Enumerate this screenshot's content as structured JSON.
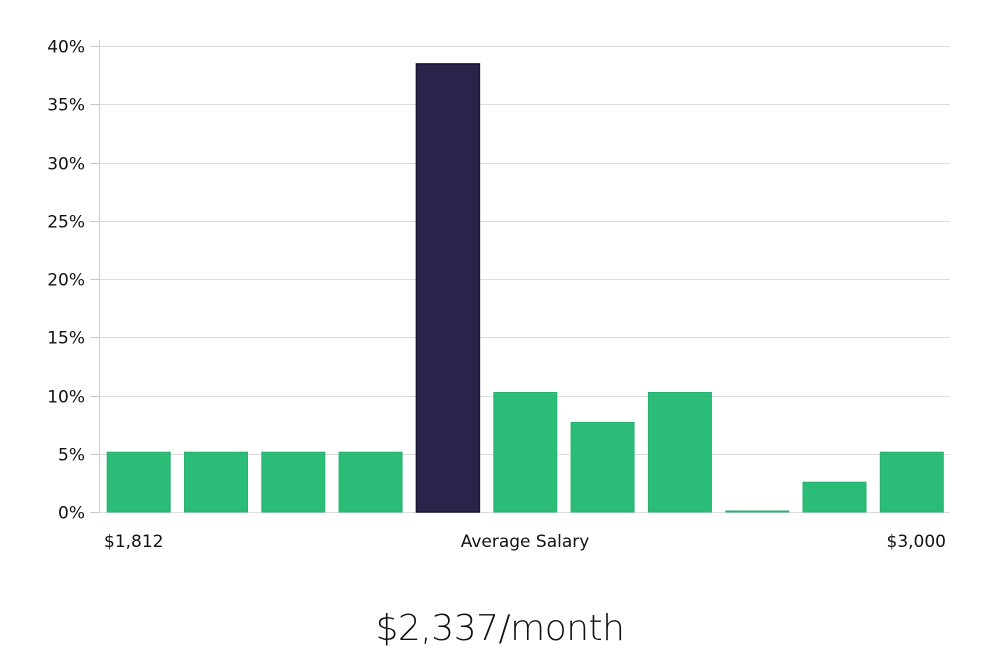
{
  "chart_data": {
    "type": "bar",
    "title": "",
    "xlabel": "Average Salary",
    "ylabel": "",
    "x_range_labels": {
      "min": "$1,812",
      "max": "$3,000"
    },
    "categories": [
      "bin1",
      "bin2",
      "bin3",
      "bin4",
      "bin5",
      "bin6",
      "bin7",
      "bin8",
      "bin9",
      "bin10",
      "bin11"
    ],
    "values": [
      5.13,
      5.13,
      5.13,
      5.13,
      38.46,
      10.26,
      7.69,
      10.26,
      0,
      2.56,
      5.13
    ],
    "highlight_index": 4,
    "ylim": [
      0,
      40
    ],
    "yticks": [
      0,
      5,
      10,
      15,
      20,
      25,
      30,
      35,
      40
    ],
    "ytick_labels": [
      "0%",
      "5%",
      "10%",
      "15%",
      "20%",
      "25%",
      "30%",
      "35%",
      "40%"
    ],
    "grid": true,
    "legend": null,
    "colors": {
      "bar": "#2bbd77",
      "highlight": "#28244a"
    }
  },
  "axis": {
    "x_min_label": "$1,812",
    "x_center_label": "Average Salary",
    "x_max_label": "$3,000"
  },
  "summary": {
    "salary_text": "$2,337/month"
  }
}
